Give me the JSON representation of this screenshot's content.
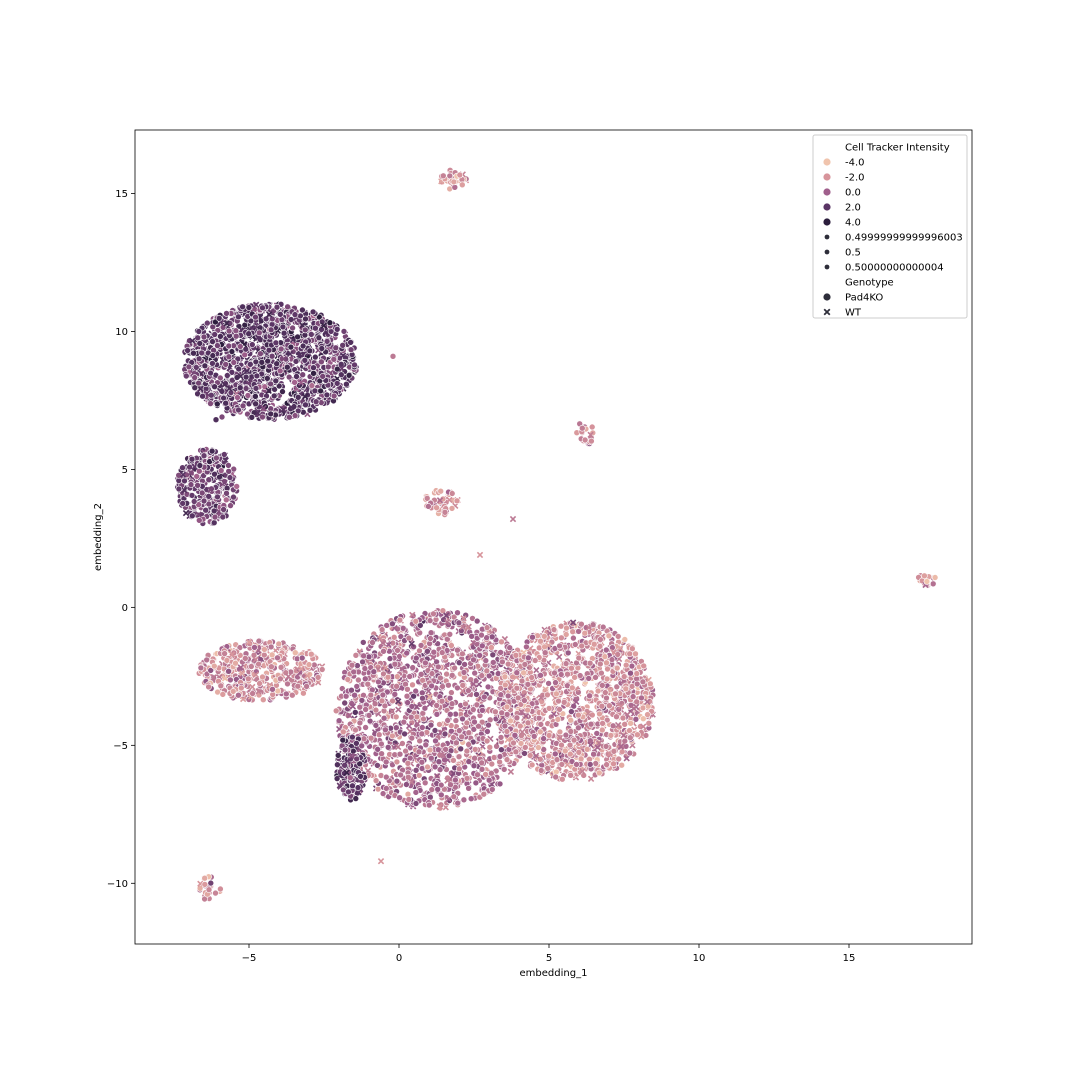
{
  "chart_data": {
    "type": "scatter",
    "title": "",
    "xlabel": "embedding_1",
    "ylabel": "embedding_2",
    "xlim": [
      -8.8,
      19.1
    ],
    "ylim": [
      -12.2,
      17.3
    ],
    "x_ticks": [
      -5,
      0,
      5,
      10,
      15
    ],
    "y_ticks": [
      -10,
      -5,
      0,
      5,
      10,
      15
    ],
    "x_tick_labels": [
      "−5",
      "0",
      "5",
      "10",
      "15"
    ],
    "y_tick_labels": [
      "−10",
      "−5",
      "0",
      "5",
      "10",
      "15"
    ],
    "grid": false,
    "legend_placement": "top-right",
    "legend": {
      "hue_title": "Cell Tracker Intensity",
      "hue_entries": [
        {
          "label": "-4.0",
          "color": "#f0c4ad"
        },
        {
          "label": "-2.0",
          "color": "#d7949b"
        },
        {
          "label": "0.0",
          "color": "#a05f8c"
        },
        {
          "label": "2.0",
          "color": "#5a3565"
        },
        {
          "label": "4.0",
          "color": "#2b1d3c"
        }
      ],
      "size_entries": [
        {
          "label": "0.49999999999996003"
        },
        {
          "label": "0.5"
        },
        {
          "label": "0.50000000000004"
        }
      ],
      "style_title": "Genotype",
      "style_entries": [
        {
          "label": "Pad4KO",
          "marker": "circle"
        },
        {
          "label": "WT",
          "marker": "x"
        }
      ]
    },
    "clusters": [
      {
        "cx": -4.3,
        "cy": 8.9,
        "rx": 2.9,
        "ry": 2.1,
        "intensity": 2.0,
        "n": 1500
      },
      {
        "cx": -6.4,
        "cy": 4.4,
        "rx": 1.0,
        "ry": 1.4,
        "intensity": 1.5,
        "n": 320
      },
      {
        "cx": 1.8,
        "cy": 15.5,
        "rx": 0.45,
        "ry": 0.35,
        "intensity": -2.0,
        "n": 30
      },
      {
        "cx": 1.4,
        "cy": 3.8,
        "rx": 0.6,
        "ry": 0.45,
        "intensity": -2.0,
        "n": 50
      },
      {
        "cx": 6.2,
        "cy": 6.3,
        "rx": 0.3,
        "ry": 0.45,
        "intensity": -1.5,
        "n": 18
      },
      {
        "cx": 17.6,
        "cy": 1.0,
        "rx": 0.3,
        "ry": 0.25,
        "intensity": -2.0,
        "n": 18
      },
      {
        "cx": -6.3,
        "cy": -10.2,
        "rx": 0.35,
        "ry": 0.5,
        "intensity": -1.5,
        "n": 25
      },
      {
        "cx": -4.6,
        "cy": -2.3,
        "rx": 2.1,
        "ry": 1.1,
        "intensity": -1.5,
        "n": 450
      },
      {
        "cx": 1.2,
        "cy": -3.7,
        "rx": 3.3,
        "ry": 3.6,
        "intensity": -0.5,
        "n": 1600
      },
      {
        "cx": 5.9,
        "cy": -3.4,
        "rx": 2.6,
        "ry": 2.9,
        "intensity": -1.5,
        "n": 1300
      },
      {
        "cx": -1.6,
        "cy": -5.8,
        "rx": 0.5,
        "ry": 1.2,
        "intensity": 1.8,
        "n": 150
      }
    ],
    "outlier_points": [
      {
        "x": 3.8,
        "y": 3.2,
        "intensity": -1.0,
        "genotype": "WT"
      },
      {
        "x": 2.7,
        "y": 1.9,
        "intensity": -2.0,
        "genotype": "WT"
      },
      {
        "x": -0.6,
        "y": -9.2,
        "intensity": -2.0,
        "genotype": "WT"
      },
      {
        "x": -5.9,
        "y": 6.9,
        "intensity": 1.0,
        "genotype": "Pad4KO"
      },
      {
        "x": -6.1,
        "y": 6.8,
        "intensity": 2.5,
        "genotype": "Pad4KO"
      },
      {
        "x": -0.2,
        "y": 9.1,
        "intensity": -1.0,
        "genotype": "Pad4KO"
      }
    ]
  }
}
